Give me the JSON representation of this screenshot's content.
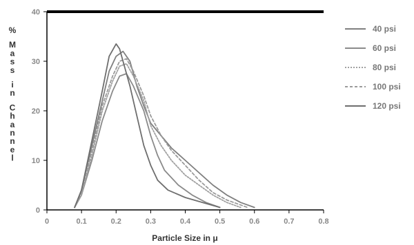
{
  "chart_data": {
    "type": "line",
    "xlabel": "Particle Size in μ",
    "ylabel": "% Mass in Channel",
    "xlim": [
      0,
      0.8
    ],
    "ylim": [
      0,
      40
    ],
    "x_ticks": [
      "0",
      "0.1",
      "0.2",
      "0.3",
      "0.4",
      "0.5",
      "0.6",
      "0.7",
      "0.8"
    ],
    "y_ticks": [
      "0",
      "10",
      "20",
      "30",
      "40"
    ],
    "grid": false,
    "legend_position": "right",
    "series": [
      {
        "name": "40 psi",
        "color": "#7f7f7f",
        "dash": "",
        "points": [
          [
            0.08,
            0.5
          ],
          [
            0.1,
            4
          ],
          [
            0.13,
            13
          ],
          [
            0.16,
            22
          ],
          [
            0.18,
            28
          ],
          [
            0.2,
            31
          ],
          [
            0.22,
            32
          ],
          [
            0.24,
            30
          ],
          [
            0.26,
            25
          ],
          [
            0.28,
            21
          ],
          [
            0.3,
            17.5
          ],
          [
            0.33,
            15
          ],
          [
            0.36,
            12.5
          ],
          [
            0.4,
            10
          ],
          [
            0.44,
            7.5
          ],
          [
            0.48,
            5
          ],
          [
            0.52,
            3
          ],
          [
            0.56,
            1.5
          ],
          [
            0.6,
            0.5
          ]
        ]
      },
      {
        "name": "60 psi",
        "color": "#8a8a8a",
        "dash": "",
        "points": [
          [
            0.08,
            0.5
          ],
          [
            0.1,
            3
          ],
          [
            0.13,
            10
          ],
          [
            0.16,
            18
          ],
          [
            0.19,
            24
          ],
          [
            0.21,
            27
          ],
          [
            0.23,
            27.5
          ],
          [
            0.25,
            25
          ],
          [
            0.28,
            20
          ],
          [
            0.3,
            15
          ],
          [
            0.32,
            11
          ],
          [
            0.34,
            8
          ],
          [
            0.38,
            5
          ],
          [
            0.42,
            3
          ],
          [
            0.46,
            1.5
          ],
          [
            0.5,
            0.5
          ]
        ]
      },
      {
        "name": "80 psi",
        "color": "#a0a0a0",
        "dash": "2,2",
        "points": [
          [
            0.08,
            0.5
          ],
          [
            0.1,
            3
          ],
          [
            0.13,
            11
          ],
          [
            0.16,
            20
          ],
          [
            0.19,
            26
          ],
          [
            0.21,
            29
          ],
          [
            0.23,
            29.5
          ],
          [
            0.25,
            27
          ],
          [
            0.28,
            22
          ],
          [
            0.3,
            17
          ],
          [
            0.33,
            13
          ],
          [
            0.36,
            10
          ],
          [
            0.4,
            7
          ],
          [
            0.44,
            5
          ],
          [
            0.48,
            3
          ],
          [
            0.52,
            1.5
          ],
          [
            0.56,
            0.5
          ]
        ]
      },
      {
        "name": "100 psi",
        "color": "#9a9a9a",
        "dash": "4,3",
        "points": [
          [
            0.08,
            0.5
          ],
          [
            0.1,
            3.5
          ],
          [
            0.13,
            12
          ],
          [
            0.16,
            21
          ],
          [
            0.19,
            27
          ],
          [
            0.21,
            30
          ],
          [
            0.23,
            30.5
          ],
          [
            0.25,
            28
          ],
          [
            0.28,
            23
          ],
          [
            0.3,
            19
          ],
          [
            0.33,
            15
          ],
          [
            0.36,
            12
          ],
          [
            0.4,
            9
          ],
          [
            0.44,
            6
          ],
          [
            0.48,
            3.5
          ],
          [
            0.52,
            2
          ],
          [
            0.56,
            1
          ],
          [
            0.58,
            0.5
          ]
        ]
      },
      {
        "name": "120 psi",
        "color": "#6e6e6e",
        "dash": "",
        "points": [
          [
            0.08,
            0.5
          ],
          [
            0.1,
            4
          ],
          [
            0.13,
            14
          ],
          [
            0.16,
            24
          ],
          [
            0.18,
            31
          ],
          [
            0.2,
            33.5
          ],
          [
            0.21,
            32.5
          ],
          [
            0.22,
            30
          ],
          [
            0.24,
            25
          ],
          [
            0.26,
            19
          ],
          [
            0.28,
            13
          ],
          [
            0.3,
            9
          ],
          [
            0.32,
            6
          ],
          [
            0.35,
            4
          ],
          [
            0.4,
            2.5
          ],
          [
            0.45,
            1.5
          ],
          [
            0.5,
            0.5
          ]
        ]
      }
    ]
  }
}
